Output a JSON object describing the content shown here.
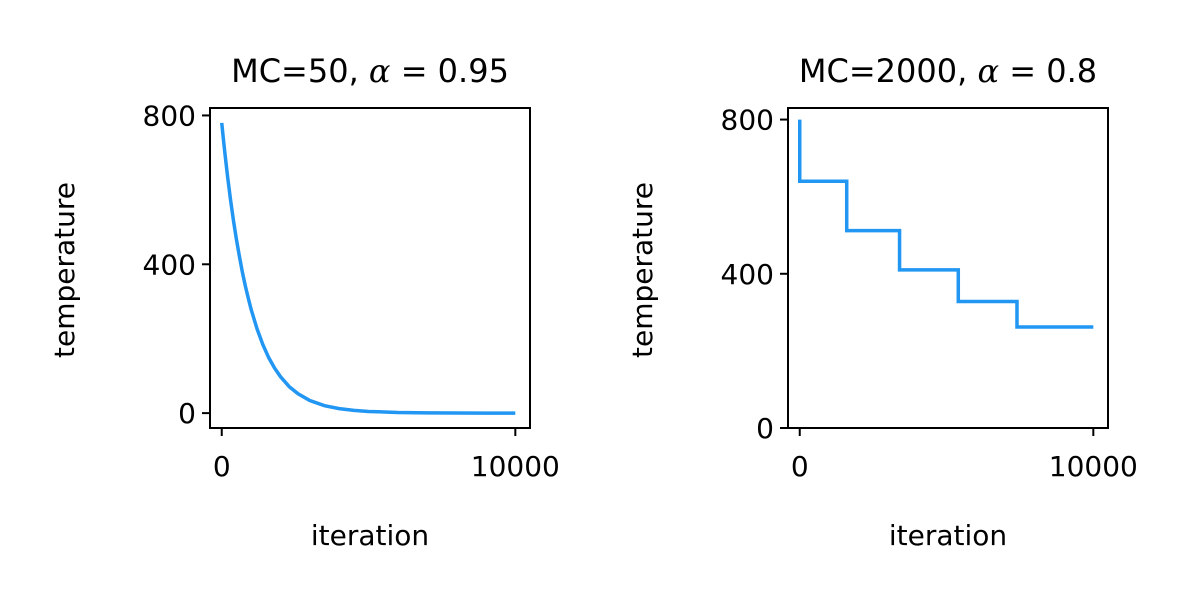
{
  "colors": {
    "line": "#2196f3",
    "axis": "#000000"
  },
  "chart_data": [
    {
      "type": "line",
      "title_prefix": "MC=50, ",
      "title_symbol": "α",
      "title_suffix": " = 0.95",
      "xlabel": "iteration",
      "ylabel": "temperature",
      "xlim": [
        -400,
        10500
      ],
      "ylim": [
        -40,
        820
      ],
      "xticks": [
        0,
        10000
      ],
      "yticks": [
        0,
        400,
        800
      ],
      "series": [
        {
          "step": "none",
          "x": [
            0,
            50,
            100,
            150,
            200,
            250,
            300,
            350,
            400,
            450,
            500,
            600,
            700,
            800,
            900,
            1000,
            1200,
            1400,
            1600,
            1800,
            2000,
            2300,
            2600,
            3000,
            3500,
            4000,
            4500,
            5000,
            6000,
            7000,
            8000,
            9000,
            10000
          ],
          "y": [
            780,
            741,
            704,
            669,
            635,
            604,
            573,
            545,
            517,
            492,
            467,
            422,
            380,
            343,
            310,
            279,
            227,
            184,
            149,
            121,
            98,
            71,
            52,
            34,
            20,
            12,
            7.5,
            4.5,
            1.6,
            0.6,
            0.2,
            0.1,
            0.0
          ]
        }
      ]
    },
    {
      "type": "line",
      "title_prefix": "MC=2000, ",
      "title_symbol": "α",
      "title_suffix": " = 0.8",
      "xlabel": "iteration",
      "ylabel": "temperature",
      "xlim": [
        -400,
        10500
      ],
      "ylim": [
        0,
        830
      ],
      "xticks": [
        0,
        10000
      ],
      "yticks": [
        0,
        400,
        800
      ],
      "series": [
        {
          "step": "post",
          "x": [
            0,
            0,
            1600,
            1600,
            3400,
            3400,
            5400,
            5400,
            7400,
            7400,
            10000
          ],
          "y": [
            800,
            640,
            640,
            512,
            512,
            410,
            410,
            328,
            328,
            262,
            262
          ]
        }
      ]
    }
  ]
}
